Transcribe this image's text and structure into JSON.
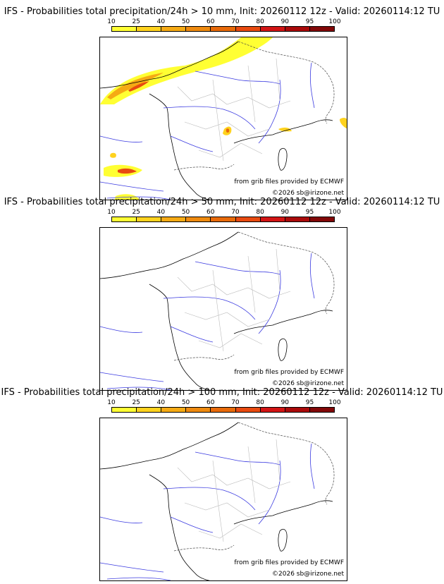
{
  "colors": {
    "scale": [
      "#ffff33",
      "#ffd21e",
      "#f5aa14",
      "#ee8a0f",
      "#e86a0a",
      "#e84a10",
      "#d21414",
      "#aa0a0a",
      "#820808",
      "#5a0505"
    ]
  },
  "legend": {
    "ticks": [
      "10",
      "25",
      "40",
      "50",
      "60",
      "70",
      "80",
      "90",
      "95",
      "100"
    ]
  },
  "panels": [
    {
      "title": "IFS - Probabilities total precipitation/24h > 10 mm, Init: 20260112 12z - Valid: 20260114:12 TU",
      "credit_source": "from grib files provided by ECMWF",
      "credit_copyright": "©2026 sb@irizone.net"
    },
    {
      "title": "IFS - Probabilities total precipitation/24h > 50 mm, Init: 20260112 12z - Valid: 20260114:12 TU",
      "credit_source": "from grib files provided by ECMWF",
      "credit_copyright": "©2026 sb@irizone.net"
    },
    {
      "title": "IFS - Probabilities total precipitation/24h > 100 mm, Init: 20260112 12z - Valid: 20260114:12 TU",
      "credit_source": "from grib files provided by ECMWF",
      "credit_copyright": "©2026 sb@irizone.net"
    }
  ]
}
